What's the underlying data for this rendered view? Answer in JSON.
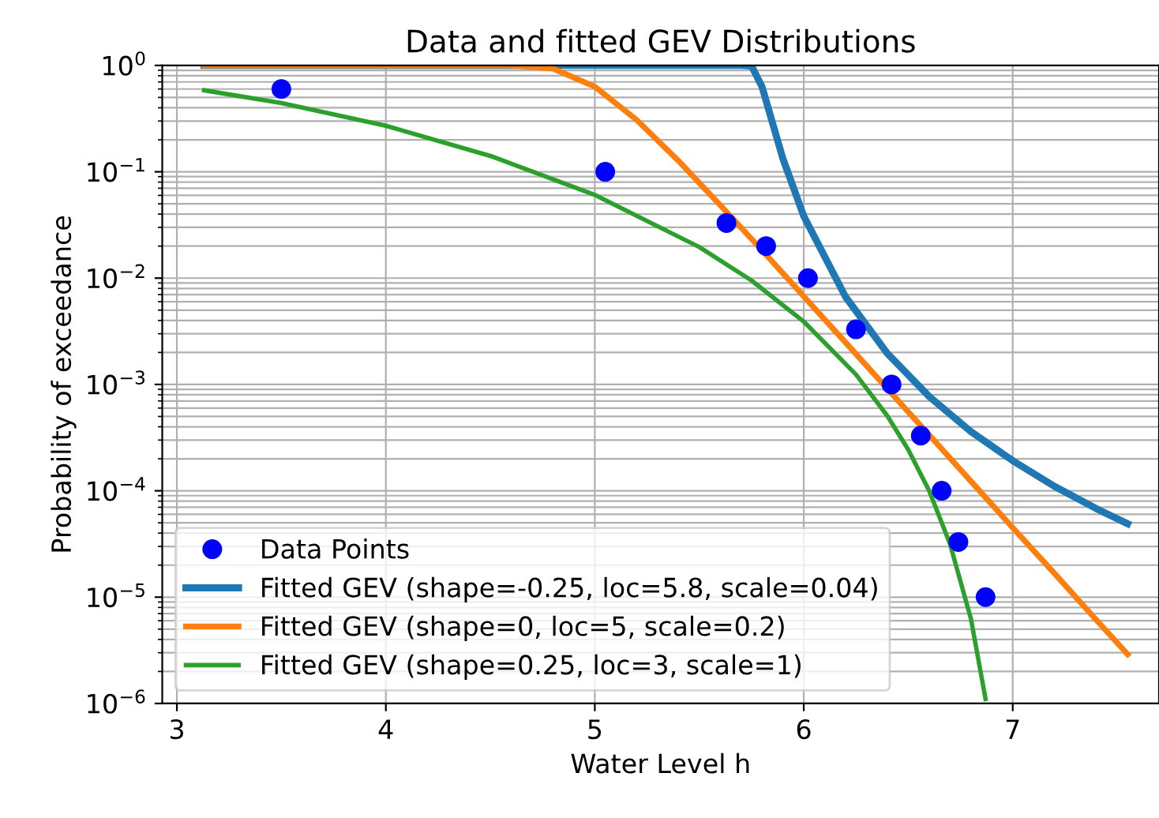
{
  "chart_data": {
    "type": "line",
    "title": "Data and fitted GEV Distributions",
    "xlabel": "Water Level h",
    "ylabel": "Probability of exceedance",
    "log": "y",
    "xlim": [
      2.93,
      7.7
    ],
    "xticks": [
      3,
      4,
      5,
      6,
      7
    ],
    "ylim": [
      1e-06,
      1
    ],
    "yticks": [
      {
        "value": 1e-06,
        "label": "10$^{−6}$"
      },
      {
        "value": 1e-05,
        "label": "10$^{−5}$"
      },
      {
        "value": 0.0001,
        "label": "10$^{−4}$"
      },
      {
        "value": 0.001,
        "label": "10$^{−3}$"
      },
      {
        "value": 0.01,
        "label": "10$^{−2}$"
      },
      {
        "value": 0.1,
        "label": "10$^{−1}$"
      },
      {
        "value": 1,
        "label": "10$^{0}$"
      }
    ],
    "grid": true,
    "legend": "bottom left",
    "series": [
      {
        "name": "Data Points",
        "type": "scatter",
        "marker": "circle",
        "color": "#0000ff",
        "x": [
          3.5,
          5.05,
          5.63,
          5.82,
          6.02,
          6.25,
          6.42,
          6.56,
          6.66,
          6.74,
          6.87
        ],
        "values": [
          0.6,
          0.1,
          0.033,
          0.02,
          0.01,
          0.0033,
          0.001,
          0.00033,
          0.0001,
          3.3e-05,
          1e-05
        ]
      },
      {
        "name": "Fitted GEV (shape=-0.25, loc=5.8, scale=0.04)",
        "color": "#1f77b4",
        "x": [
          3.13,
          5.66,
          5.7,
          5.75,
          5.8,
          5.9,
          6.0,
          6.2,
          6.4,
          6.6,
          6.8,
          7.0,
          7.2,
          7.4,
          7.55
        ],
        "values": [
          1,
          1,
          1,
          0.989,
          0.632,
          0.133,
          0.0383,
          0.00666,
          0.00196,
          0.00077,
          0.00036,
          0.000192,
          0.00011,
          6.8e-05,
          4.9e-05
        ]
      },
      {
        "name": "Fitted GEV (shape=0, loc=5, scale=0.2)",
        "color": "#ff7f0e",
        "x": [
          3.13,
          4.5,
          4.6,
          4.8,
          5.0,
          5.2,
          5.4,
          5.6,
          5.8,
          6.0,
          6.2,
          6.4,
          6.6,
          6.8,
          7.0,
          7.2,
          7.4,
          7.55
        ],
        "values": [
          1,
          1,
          0.9994,
          0.934,
          0.632,
          0.308,
          0.127,
          0.0486,
          0.0183,
          0.00674,
          0.00248,
          0.00091,
          0.000335,
          0.000123,
          4.5e-05,
          1.67e-05,
          6.1e-06,
          2.9e-06
        ]
      },
      {
        "name": "Fitted GEV (shape=0.25, loc=3, scale=1)",
        "color": "#2ca02c",
        "x": [
          3.13,
          3.5,
          4.0,
          4.5,
          5.0,
          5.5,
          5.75,
          6.0,
          6.25,
          6.4,
          6.5,
          6.6,
          6.7,
          6.8,
          6.87
        ],
        "values": [
          0.584,
          0.443,
          0.271,
          0.141,
          0.0606,
          0.0196,
          0.0095,
          0.0039,
          0.00124,
          0.000506,
          0.000244,
          0.0001,
          3.16e-05,
          6.25e-06,
          1.1e-06
        ]
      }
    ]
  }
}
